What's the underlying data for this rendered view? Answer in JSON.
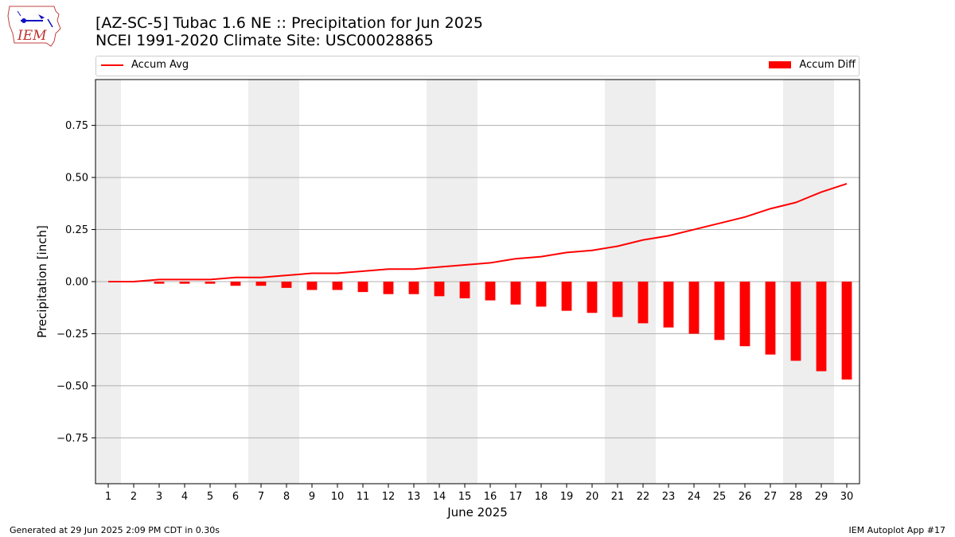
{
  "title_line1": "[AZ-SC-5] Tubac 1.6 NE :: Precipitation for Jun 2025",
  "title_line2": "NCEI 1991-2020 Climate Site: USC00028865",
  "logo_text": "IEM",
  "footer_left": "Generated at 29 Jun 2025 2:09 PM CDT in 0.30s",
  "footer_right": "IEM Autoplot App #17",
  "colors": {
    "series": "#ff0000",
    "weekend_shade": "#eeeeee",
    "grid": "#b0b0b0"
  },
  "chart_data": {
    "type": "bar",
    "xlabel": "June 2025",
    "ylabel": "Precipitation [inch]",
    "xlim": [
      0.5,
      30.5
    ],
    "ylim": [
      -0.97,
      0.97
    ],
    "yticks": [
      -0.75,
      -0.5,
      -0.25,
      0.0,
      0.25,
      0.5,
      0.75
    ],
    "ytick_labels": [
      "−0.75",
      "−0.50",
      "−0.25",
      "0.00",
      "0.25",
      "0.50",
      "0.75"
    ],
    "x": [
      1,
      2,
      3,
      4,
      5,
      6,
      7,
      8,
      9,
      10,
      11,
      12,
      13,
      14,
      15,
      16,
      17,
      18,
      19,
      20,
      21,
      22,
      23,
      24,
      25,
      26,
      27,
      28,
      29,
      30
    ],
    "shaded_days": [
      1,
      7,
      8,
      14,
      15,
      21,
      22,
      28,
      29
    ],
    "grid": "y",
    "legend_position": "top",
    "series": [
      {
        "name": "Accum Avg",
        "kind": "line",
        "values": [
          0.0,
          0.0,
          0.01,
          0.01,
          0.01,
          0.02,
          0.02,
          0.03,
          0.04,
          0.04,
          0.05,
          0.06,
          0.06,
          0.07,
          0.08,
          0.09,
          0.11,
          0.12,
          0.14,
          0.15,
          0.17,
          0.2,
          0.22,
          0.25,
          0.28,
          0.31,
          0.35,
          0.38,
          0.43,
          0.47
        ]
      },
      {
        "name": "Accum Diff",
        "kind": "bar",
        "values": [
          0.0,
          0.0,
          -0.01,
          -0.01,
          -0.01,
          -0.02,
          -0.02,
          -0.03,
          -0.04,
          -0.04,
          -0.05,
          -0.06,
          -0.06,
          -0.07,
          -0.08,
          -0.09,
          -0.11,
          -0.12,
          -0.14,
          -0.15,
          -0.17,
          -0.2,
          -0.22,
          -0.25,
          -0.28,
          -0.31,
          -0.35,
          -0.38,
          -0.43,
          -0.47
        ]
      }
    ]
  }
}
